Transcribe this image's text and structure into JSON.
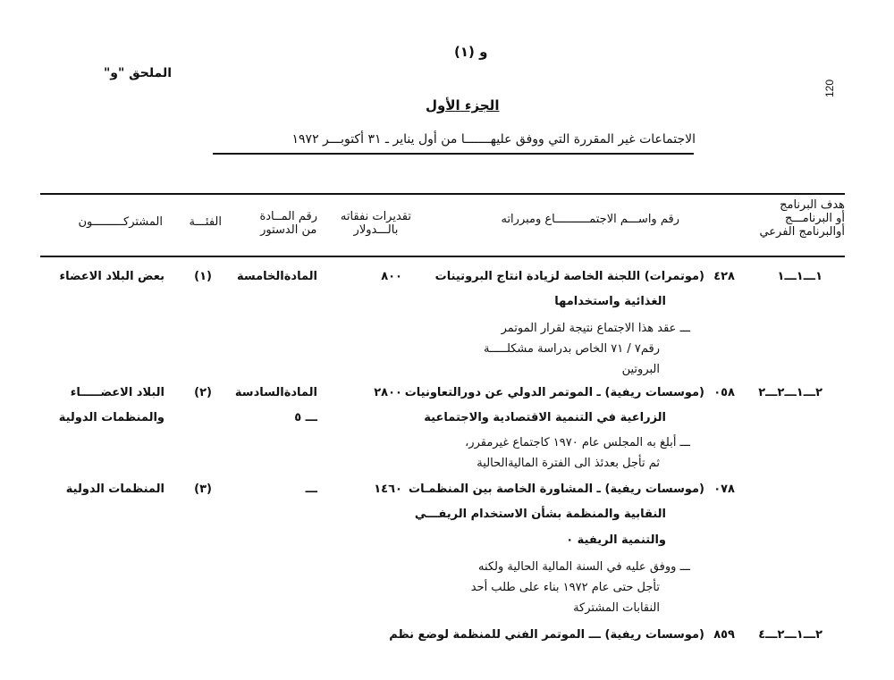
{
  "page_label": "و (١)",
  "annex_label": "الملحق \"و\"",
  "page_number": "120",
  "part_title": "الجزء الأول",
  "subtitle": "الاجتماعات غير المقررة التي ووفق عليهـــــــا من أول يناير ـ ٣١ أكتوبـــر ١٩٧٢",
  "table": {
    "headers": {
      "program": [
        "هدف البرنامج",
        "أو البرنامـــج",
        "أوالبرنامج الفرعي"
      ],
      "meeting": "رقم واســـم الاجتمــــــــــاع ومبرراته",
      "estimate": [
        "تقديرات نفقاته",
        "بالـــدولار"
      ],
      "article": [
        "رقم المــادة",
        "من الدستور"
      ],
      "category": "الفئـــة",
      "participants": "المشتركـــــــــون"
    },
    "rows": [
      {
        "program": "١ـــ١ـــ١",
        "number": "٤٢٨",
        "lines": [
          "(موتمرات) اللجنة الخاصة لزيادة انتاج البروتينات",
          "الغذائية واستخدامها"
        ],
        "notes": [
          "ـــ  عقد هذا الاجتماع نتيجة لقرار الموتمر",
          "رقم٧ / ٧١ الخاص بدراسة مشكلـــــة",
          "البروتين"
        ],
        "estimate": "٨٠٠",
        "article": [
          "المادةالخامسة"
        ],
        "category": "(١)",
        "participants": [
          "بعض البلاد الاعضاء"
        ]
      },
      {
        "program": "٢ـــ١ـــ٢ـــ٢",
        "number": "٠٥٨",
        "lines": [
          "(موسسات ريفية) ـ الموتمر الدولي عن دورالتعاونيات",
          "الزراعية في التنمية الاقتصادية والاجتماعية"
        ],
        "notes": [
          "ـــ  أبلغ به المجلس عام ١٩٧٠ كاجتماع غيرمقرر،",
          "ثم تأجل بعدئذ  الى الفترة الماليةالحالية"
        ],
        "estimate": "٢٨٠٠",
        "article": [
          "المادةالسادسة",
          "ـــ ٥"
        ],
        "category": "(٢)",
        "participants": [
          "البلاد الاعضـــــاء",
          "والمنظمات الدولية"
        ]
      },
      {
        "program": "",
        "number": "٠٧٨",
        "lines": [
          "(موسسات ريفية) ـ المشاورة الخاصة بين المنظمـات",
          "النقابية والمنظمة بشأن الاستخدام الريفـــي",
          "والتنمية الريفية ٠"
        ],
        "notes": [
          "ـــ  ووفق عليه في السنة المالية الحالية ولكنه",
          "تأجل حتى عام ١٩٧٢ بناء على طلب أحد",
          "النقابات المشتركة"
        ],
        "estimate": "١٤٦٠",
        "article": [
          "ـــ"
        ],
        "category": "(٣)",
        "participants": [
          "المنظمات الدولية"
        ]
      },
      {
        "program": "٢ـــ١ـــ٢ـــ٤",
        "number": "٨٥٩",
        "lines": [
          "(موسسات ريفية) ـــ الموتمر الفني للمنظمة لوضع نظم"
        ],
        "notes": [],
        "estimate": "",
        "article": [],
        "category": "",
        "participants": []
      }
    ]
  }
}
